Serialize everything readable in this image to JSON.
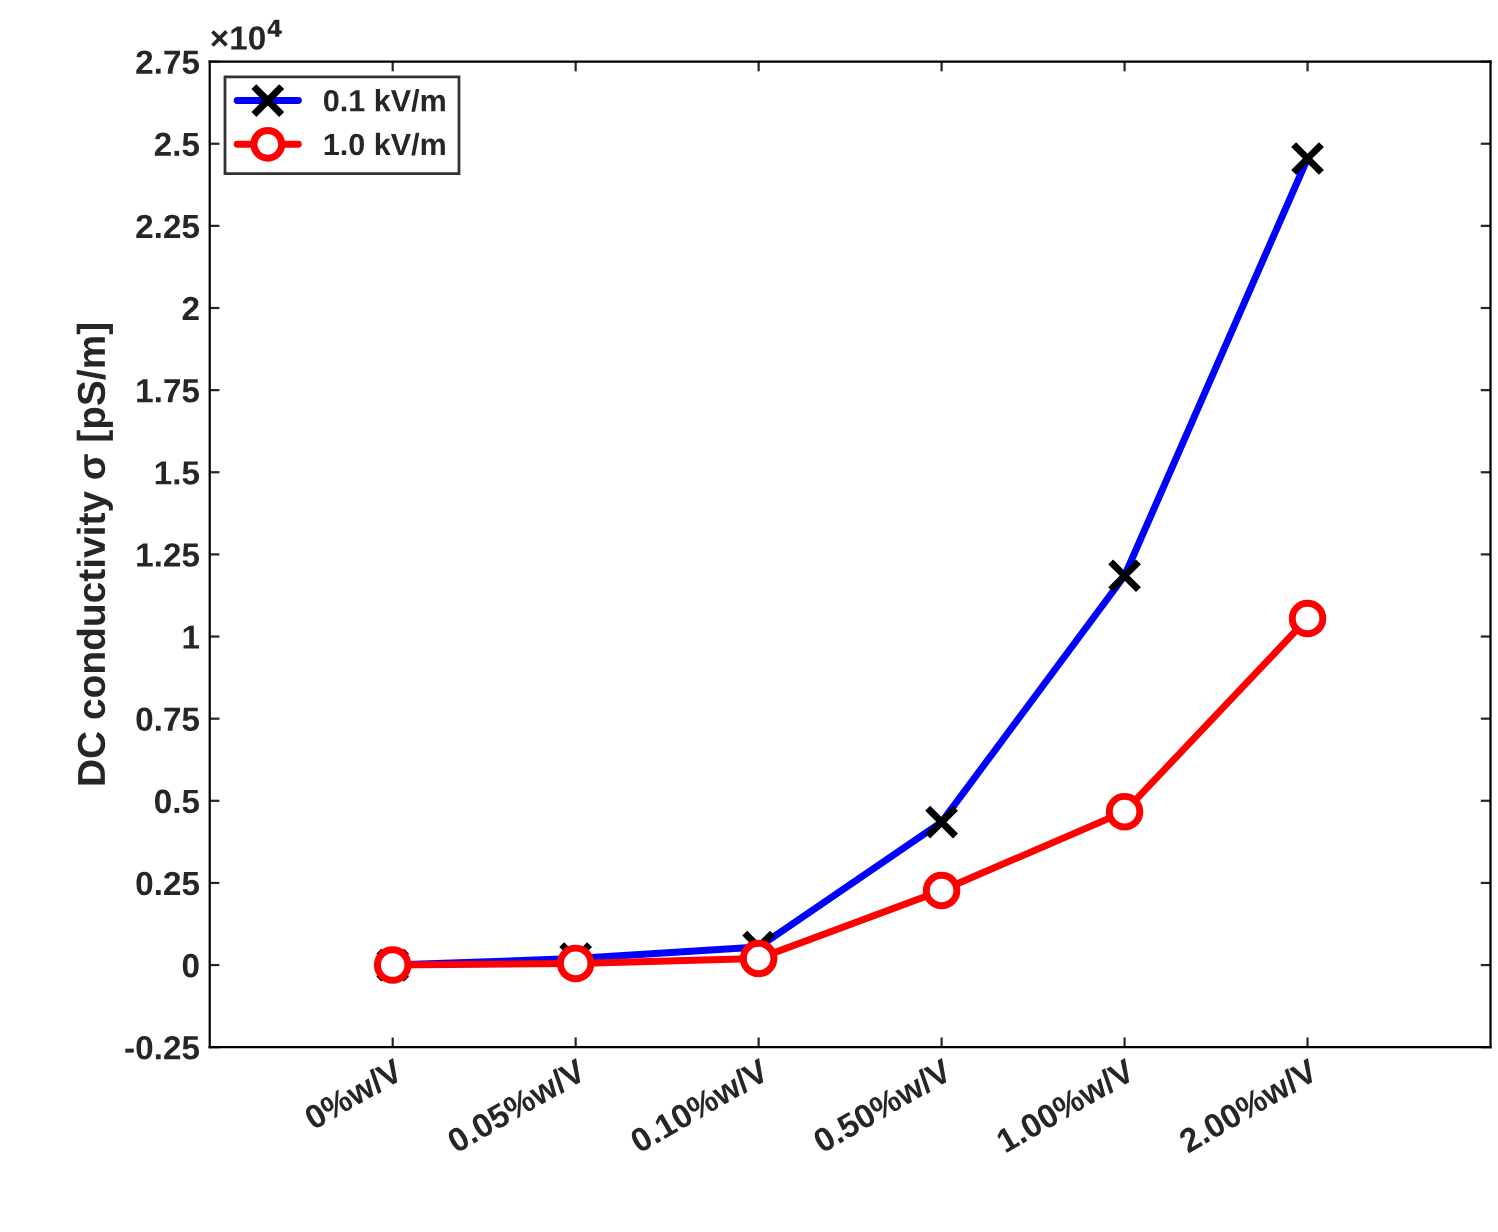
{
  "chart_data": {
    "type": "line",
    "ylabel": "DC conductivity σ [pS/m]",
    "annotations": [
      "×10$^{4}$"
    ],
    "categories": [
      "0%w/V",
      "0.05%w/V",
      "0.10%w/V",
      "0.50%w/V",
      "1.00%w/V",
      "2.00%w/V"
    ],
    "series": [
      {
        "name": "0.1 kV/m",
        "color": "#0000ff",
        "marker": "cross",
        "values": [
          0,
          0.02,
          0.055,
          0.435,
          1.185,
          2.455
        ]
      },
      {
        "name": "1.0 kV/m",
        "color": "#ff0000",
        "marker": "circle",
        "values": [
          0,
          0.005,
          0.02,
          0.227,
          0.467,
          1.055
        ]
      }
    ],
    "ylim": [
      -0.25,
      2.75
    ],
    "yticks": [
      -0.25,
      0,
      0.25,
      0.5,
      0.75,
      1,
      1.25,
      1.5,
      1.75,
      2,
      2.25,
      2.5,
      2.75
    ],
    "legend": "top left",
    "grid": false,
    "line_style": "solid"
  }
}
